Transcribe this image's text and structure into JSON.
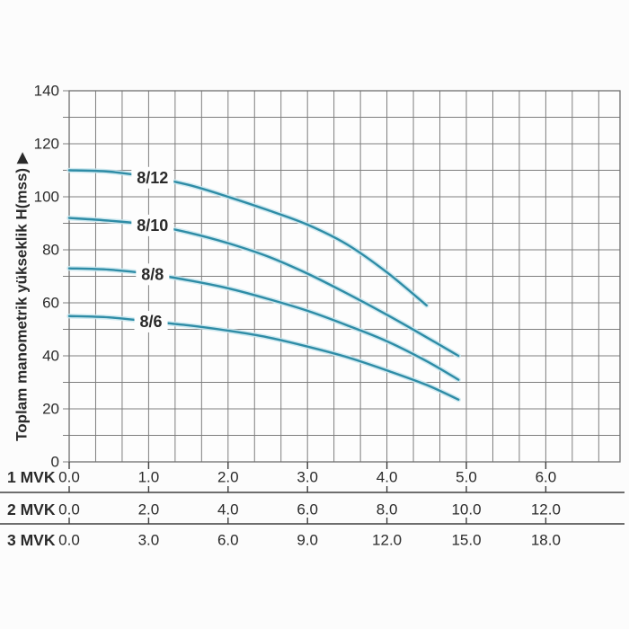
{
  "page": {
    "background": "#fcfcfc"
  },
  "chart_data": {
    "type": "line",
    "title": "",
    "y_axis": {
      "label": "Toplam manometrik yükseklik H(mss)",
      "arrow_glyph": "▶",
      "min": 0,
      "max": 140,
      "tick_step": 20,
      "grid_step": 10,
      "tick_labels": [
        "0",
        "20",
        "40",
        "60",
        "80",
        "100",
        "120",
        "140"
      ]
    },
    "x_axes": [
      {
        "name": "1 MVK",
        "unit_scale": 1,
        "tick_labels": [
          "0.0",
          "1.0",
          "2.0",
          "3.0",
          "4.0",
          "5.0",
          "6.0"
        ]
      },
      {
        "name": "2 MVK",
        "unit_scale": 2,
        "tick_labels": [
          "0.0",
          "2.0",
          "4.0",
          "6.0",
          "8.0",
          "10.0",
          "12.0"
        ]
      },
      {
        "name": "3 MVK",
        "unit_scale": 3,
        "tick_labels": [
          "0.0",
          "3.0",
          "6.0",
          "9.0",
          "12.0",
          "15.0",
          "18.0"
        ]
      }
    ],
    "grid": {
      "on": true,
      "x_minor_per_major": 3
    },
    "legend": "curve labels inline on curves",
    "series": [
      {
        "name": "8/12",
        "label_x": 1.05,
        "points": [
          [
            0,
            110
          ],
          [
            0.5,
            109.5
          ],
          [
            1,
            107.5
          ],
          [
            1.5,
            104.5
          ],
          [
            2,
            100
          ],
          [
            2.5,
            95
          ],
          [
            3,
            89.5
          ],
          [
            3.5,
            82
          ],
          [
            4,
            71.5
          ],
          [
            4.5,
            59
          ]
        ]
      },
      {
        "name": "8/10",
        "label_x": 1.05,
        "points": [
          [
            0,
            92
          ],
          [
            0.5,
            91
          ],
          [
            1,
            89.5
          ],
          [
            1.5,
            86.5
          ],
          [
            2,
            82.5
          ],
          [
            2.5,
            77.5
          ],
          [
            3,
            71
          ],
          [
            3.5,
            63.5
          ],
          [
            4,
            55.5
          ],
          [
            4.5,
            47
          ],
          [
            4.9,
            40
          ]
        ]
      },
      {
        "name": "8/8",
        "label_x": 1.05,
        "points": [
          [
            0,
            73
          ],
          [
            0.5,
            72.5
          ],
          [
            1,
            71
          ],
          [
            1.5,
            68.5
          ],
          [
            2,
            65.5
          ],
          [
            2.5,
            61.5
          ],
          [
            3,
            57
          ],
          [
            3.5,
            51.5
          ],
          [
            4,
            45.5
          ],
          [
            4.5,
            38
          ],
          [
            4.9,
            31
          ]
        ]
      },
      {
        "name": "8/6",
        "label_x": 1.03,
        "points": [
          [
            0,
            55
          ],
          [
            0.5,
            54.5
          ],
          [
            1,
            53
          ],
          [
            1.5,
            51.5
          ],
          [
            2,
            49.5
          ],
          [
            2.5,
            47
          ],
          [
            3,
            43.5
          ],
          [
            3.5,
            39.5
          ],
          [
            4,
            34.5
          ],
          [
            4.5,
            29
          ],
          [
            4.9,
            23.5
          ]
        ]
      }
    ],
    "colors": {
      "curve": "#2e8ca6",
      "curve_glow": "#c8e6ef",
      "grid_line": "#7e7e7e",
      "plot_border": "#6f6f6f",
      "separator_line": "#3f3f3f",
      "tick_text": "#2a2a2a",
      "series_label_text": "#101010",
      "plot_background": "#fdfdfd"
    }
  }
}
